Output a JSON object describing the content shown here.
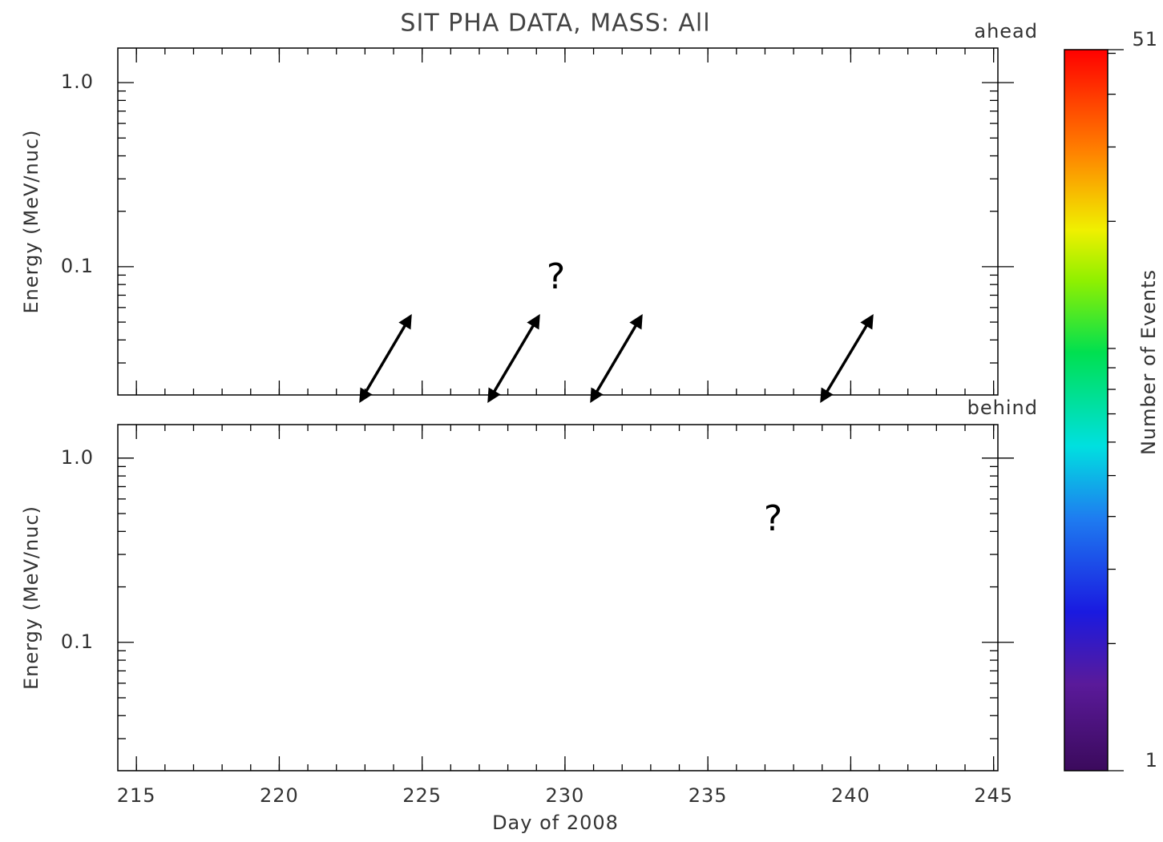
{
  "chart_data": {
    "type": "heatmap",
    "title": "SIT PHA DATA, MASS: All",
    "xlabel": "Day of 2008",
    "xlim": [
      214.35,
      245.15
    ],
    "xticks": [
      215,
      220,
      225,
      230,
      235,
      240,
      245
    ],
    "xminorticks": [
      215,
      216,
      217,
      218,
      219,
      220,
      221,
      222,
      223,
      224,
      225,
      226,
      227,
      228,
      229,
      230,
      231,
      232,
      233,
      234,
      235,
      236,
      237,
      238,
      239,
      240,
      241,
      242,
      243,
      244,
      245
    ],
    "panels": [
      {
        "label": "ahead",
        "ylabel": "Energy (MeV/nuc)",
        "ylog": true,
        "ylim": [
          0.0201,
          1.54
        ],
        "yticks": [
          0.1,
          {
            "value": 1,
            "label": "1.0"
          }
        ],
        "yminorticks": [
          0.03,
          0.04,
          0.05,
          0.06,
          0.07,
          0.08,
          0.09,
          0.2,
          0.3,
          0.4,
          0.5,
          0.6,
          0.7,
          0.8,
          0.9
        ]
      },
      {
        "label": "behind",
        "ylabel": "Energy (MeV/nuc)",
        "ylog": true,
        "ylim": [
          0.0201,
          1.52
        ],
        "yticks": [
          0.1,
          {
            "value": 1,
            "label": "1.0"
          }
        ],
        "yminorticks": [
          0.03,
          0.04,
          0.05,
          0.06,
          0.07,
          0.08,
          0.09,
          0.2,
          0.3,
          0.4,
          0.5,
          0.6,
          0.7,
          0.8,
          0.9
        ]
      }
    ],
    "colorbar": {
      "label": "Number of Events",
      "log": true,
      "lim": [
        1,
        51
      ],
      "ticks": [
        1,
        51
      ],
      "minorticks": [
        2,
        3,
        4,
        5,
        6,
        7,
        8,
        9,
        10,
        20,
        30,
        40,
        50
      ]
    },
    "annotations": [
      "?",
      "?"
    ]
  }
}
